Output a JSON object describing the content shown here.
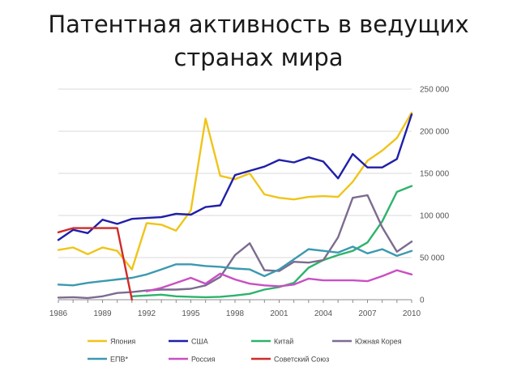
{
  "slide": {
    "title": "Патентная активность в ведущих\nстранах мира"
  },
  "chart_data": {
    "type": "line",
    "title": "",
    "xlabel": "",
    "ylabel": "",
    "x_ticks": [
      "1986",
      "1989",
      "1992",
      "1995",
      "1998",
      "2001",
      "2004",
      "2007",
      "2010"
    ],
    "x_range": [
      1986,
      2010
    ],
    "y_ticks": [
      "0",
      "50 000",
      "100 000",
      "150 000",
      "200 000",
      "250 000"
    ],
    "ylim": [
      0,
      250000
    ],
    "y_axis_side": "right",
    "grid": true,
    "legend_position": "bottom",
    "series": [
      {
        "name": "Япония",
        "color": "#f0c419",
        "x": [
          1986,
          1987,
          1988,
          1989,
          1990,
          1991,
          1992,
          1993,
          1994,
          1995,
          1996,
          1997,
          1998,
          1999,
          2000,
          2001,
          2002,
          2003,
          2004,
          2005,
          2006,
          2007,
          2008,
          2009,
          2010
        ],
        "y": [
          59000,
          62000,
          54000,
          62000,
          58000,
          36000,
          91000,
          89000,
          82000,
          106000,
          215000,
          147000,
          143000,
          150000,
          125000,
          121000,
          119000,
          122000,
          123000,
          122000,
          140000,
          165000,
          177000,
          192000,
          222000
        ]
      },
      {
        "name": "США",
        "color": "#1f1fa8",
        "x": [
          1986,
          1987,
          1988,
          1989,
          1990,
          1991,
          1992,
          1993,
          1994,
          1995,
          1996,
          1997,
          1998,
          1999,
          2000,
          2001,
          2002,
          2003,
          2004,
          2005,
          2006,
          2007,
          2008,
          2009,
          2010
        ],
        "y": [
          71000,
          83000,
          79000,
          95000,
          90000,
          96000,
          97000,
          98000,
          102000,
          101000,
          110000,
          112000,
          148000,
          153000,
          158000,
          166000,
          163000,
          169000,
          164000,
          144000,
          173000,
          157000,
          157000,
          167000,
          220000
        ]
      },
      {
        "name": "Китай",
        "color": "#2db36b",
        "x": [
          1991,
          1992,
          1993,
          1994,
          1995,
          1996,
          1997,
          1998,
          1999,
          2000,
          2001,
          2002,
          2003,
          2004,
          2005,
          2006,
          2007,
          2008,
          2009,
          2010
        ],
        "y": [
          4000,
          5000,
          6000,
          4000,
          3500,
          3000,
          3500,
          5000,
          7000,
          12000,
          15000,
          20000,
          38000,
          47000,
          53000,
          58000,
          68000,
          93000,
          128000,
          135000
        ]
      },
      {
        "name": "Южная Корея",
        "color": "#7d6b8f",
        "x": [
          1986,
          1987,
          1988,
          1989,
          1990,
          1991,
          1992,
          1993,
          1994,
          1995,
          1996,
          1997,
          1998,
          1999,
          2000,
          2001,
          2002,
          2003,
          2004,
          2005,
          2006,
          2007,
          2008,
          2009,
          2010
        ],
        "y": [
          2500,
          3000,
          2000,
          4000,
          8000,
          9000,
          11000,
          12000,
          12000,
          13000,
          17000,
          27000,
          53000,
          67000,
          35000,
          34000,
          45000,
          44000,
          47000,
          74000,
          121000,
          124000,
          86000,
          57000,
          69000
        ]
      },
      {
        "name": "ЕПВ*",
        "color": "#3c99b0",
        "x": [
          1986,
          1987,
          1988,
          1989,
          1990,
          1991,
          1992,
          1993,
          1994,
          1995,
          1996,
          1997,
          1998,
          1999,
          2000,
          2001,
          2002,
          2003,
          2004,
          2005,
          2006,
          2007,
          2008,
          2009,
          2010
        ],
        "y": [
          18000,
          17000,
          20000,
          22000,
          24000,
          26000,
          30000,
          36000,
          42000,
          42000,
          40000,
          39000,
          37000,
          36000,
          28000,
          36000,
          48000,
          60000,
          58000,
          56000,
          63000,
          55000,
          60000,
          52000,
          58000
        ]
      },
      {
        "name": "Россия",
        "color": "#c94fc3",
        "x": [
          1992,
          1993,
          1994,
          1995,
          1996,
          1997,
          1998,
          1999,
          2000,
          2001,
          2002,
          2003,
          2004,
          2005,
          2006,
          2007,
          2008,
          2009,
          2010
        ],
        "y": [
          10000,
          14000,
          20000,
          26000,
          19000,
          31000,
          24000,
          19000,
          17000,
          16000,
          18000,
          25000,
          23000,
          23000,
          23000,
          22000,
          28000,
          35000,
          30000
        ]
      },
      {
        "name": "Советский Союз",
        "color": "#d12a2a",
        "x": [
          1986,
          1987,
          1988,
          1989,
          1990,
          1991
        ],
        "y": [
          80000,
          85000,
          85000,
          85000,
          85000,
          0
        ]
      }
    ]
  }
}
